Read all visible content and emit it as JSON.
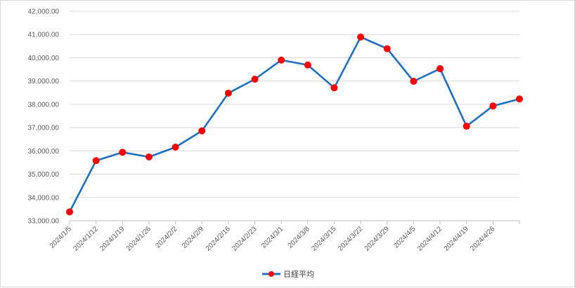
{
  "chart_data": {
    "type": "line",
    "title": "",
    "xlabel": "",
    "ylabel": "",
    "categories": [
      "2024/1/5",
      "2024/1/12",
      "2024/1/19",
      "2024/1/26",
      "2024/2/2",
      "2024/2/9",
      "2024/2/16",
      "2024/2/23",
      "2024/3/1",
      "2024/3/8",
      "2024/3/15",
      "2024/3/22",
      "2024/3/29",
      "2024/4/5",
      "2024/4/12",
      "2024/4/19",
      "2024/4/26",
      ""
    ],
    "series": [
      {
        "name": "日経平均",
        "color": "#1f6fbf",
        "marker_color": "#ff0000",
        "values": [
          33380,
          35580,
          35940,
          35740,
          36160,
          36860,
          38480,
          39080,
          39900,
          39690,
          38710,
          40890,
          40390,
          38990,
          39530,
          37060,
          37930,
          38230
        ]
      }
    ],
    "ylim": [
      33000,
      42000
    ],
    "yticks": [
      "33,000.00",
      "34,000.00",
      "35,000.00",
      "36,000.00",
      "37,000.00",
      "38,000.00",
      "39,000.00",
      "40,000.00",
      "41,000.00",
      "42,000.00"
    ],
    "grid": true,
    "legend_position": "bottom"
  }
}
